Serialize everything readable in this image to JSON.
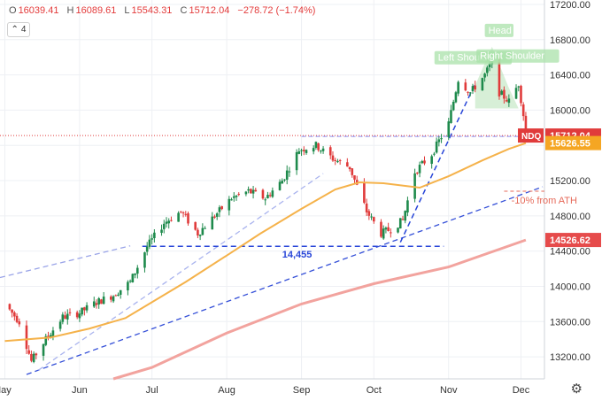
{
  "legend": {
    "o_label": "O",
    "o": "16039.41",
    "h_label": "H",
    "h": "16089.61",
    "l_label": "L",
    "l": "15543.31",
    "c_label": "C",
    "c": "15712.04",
    "change": "−278.72 (−1.74%)"
  },
  "indicator_toggle": {
    "icon": "chevron-up-icon",
    "count": "4"
  },
  "settings_icon": "gear-icon",
  "chart_data": {
    "type": "candlestick",
    "symbol": "NDQ",
    "x_ticks": [
      "May",
      "Jun",
      "Jul",
      "Aug",
      "Sep",
      "Oct",
      "Nov",
      "Dec"
    ],
    "y_ticks": [
      "13200.00",
      "13600.00",
      "14000.00",
      "14400.00",
      "14800.00",
      "15200.00",
      "15600.00",
      "16000.00",
      "16400.00",
      "16800.00",
      "17200.00"
    ],
    "ylim": [
      12950,
      17200
    ],
    "current_price": {
      "label": "NDQ",
      "value": "15712.04",
      "color": "#e03b3b"
    },
    "price_labels": [
      {
        "value": "15626.55",
        "color": "#f5a623"
      },
      {
        "value": "14526.62",
        "color": "#e64b4b"
      }
    ],
    "annotations": {
      "support": "14,455",
      "left_shoulder": "Left Shoulder",
      "head": "Head",
      "right_shoulder": "Right Shoulder",
      "ath_line": "-10% from ATH"
    },
    "levels": {
      "support": 14455,
      "ath_minus_10": 15080
    },
    "ma_50": [
      [
        "2021-05-01",
        13380
      ],
      [
        "2021-05-20",
        13420
      ],
      [
        "2021-06-05",
        13520
      ],
      [
        "2021-06-20",
        13640
      ],
      [
        "2021-07-01",
        13820
      ],
      [
        "2021-07-15",
        14050
      ],
      [
        "2021-08-01",
        14350
      ],
      [
        "2021-08-15",
        14600
      ],
      [
        "2021-09-01",
        14880
      ],
      [
        "2021-09-15",
        15100
      ],
      [
        "2021-09-25",
        15180
      ],
      [
        "2021-10-05",
        15170
      ],
      [
        "2021-10-20",
        15120
      ],
      [
        "2021-11-01",
        15250
      ],
      [
        "2021-11-15",
        15430
      ],
      [
        "2021-11-26",
        15560
      ],
      [
        "2021-12-03",
        15626
      ]
    ],
    "ma_200": [
      [
        "2021-06-15",
        12950
      ],
      [
        "2021-07-01",
        13080
      ],
      [
        "2021-08-01",
        13470
      ],
      [
        "2021-09-01",
        13800
      ],
      [
        "2021-10-01",
        14030
      ],
      [
        "2021-11-01",
        14220
      ],
      [
        "2021-12-03",
        14526
      ]
    ],
    "price_path": [
      [
        "2021-05-01",
        13800
      ],
      [
        "2021-05-07",
        13600
      ],
      [
        "2021-05-12",
        13150
      ],
      [
        "2021-05-18",
        13400
      ],
      [
        "2021-05-25",
        13650
      ],
      [
        "2021-06-01",
        13700
      ],
      [
        "2021-06-08",
        13820
      ],
      [
        "2021-06-15",
        13900
      ],
      [
        "2021-06-22",
        14050
      ],
      [
        "2021-06-29",
        14450
      ],
      [
        "2021-07-06",
        14720
      ],
      [
        "2021-07-13",
        14850
      ],
      [
        "2021-07-20",
        14600
      ],
      [
        "2021-07-27",
        14800
      ],
      [
        "2021-08-03",
        15000
      ],
      [
        "2021-08-10",
        15080
      ],
      [
        "2021-08-17",
        15000
      ],
      [
        "2021-08-24",
        15200
      ],
      [
        "2021-08-31",
        15550
      ],
      [
        "2021-09-07",
        15600
      ],
      [
        "2021-09-14",
        15450
      ],
      [
        "2021-09-21",
        15350
      ],
      [
        "2021-09-28",
        14850
      ],
      [
        "2021-10-04",
        14600
      ],
      [
        "2021-10-08",
        14650
      ],
      [
        "2021-10-13",
        14750
      ],
      [
        "2021-10-18",
        15300
      ],
      [
        "2021-10-25",
        15500
      ],
      [
        "2021-11-01",
        15850
      ],
      [
        "2021-11-05",
        16350
      ],
      [
        "2021-11-10",
        16200
      ],
      [
        "2021-11-16",
        16400
      ],
      [
        "2021-11-19",
        16550
      ],
      [
        "2021-11-22",
        16200
      ],
      [
        "2021-11-26",
        16100
      ],
      [
        "2021-11-30",
        16300
      ],
      [
        "2021-12-02",
        15950
      ],
      [
        "2021-12-03",
        15712
      ]
    ]
  }
}
